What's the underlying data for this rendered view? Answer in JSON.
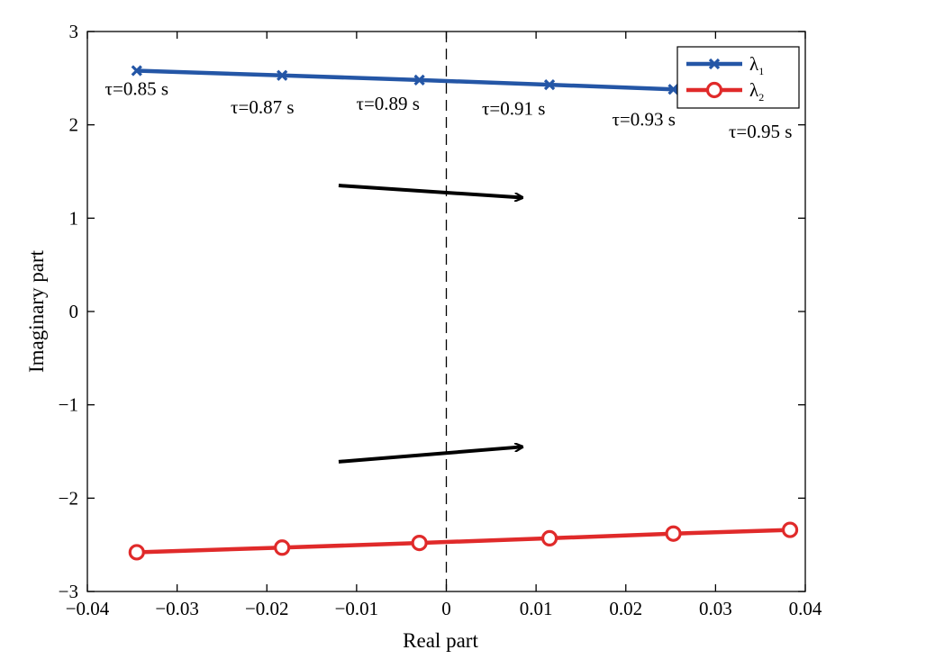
{
  "chart_data": {
    "type": "scatter",
    "xlabel": "Real part",
    "ylabel": "Imaginary part",
    "xlim": [
      -0.04,
      0.04
    ],
    "ylim": [
      -3,
      3
    ],
    "xticks": [
      -0.04,
      -0.03,
      -0.02,
      -0.01,
      0,
      0.01,
      0.02,
      0.03,
      0.04
    ],
    "yticks": [
      -3,
      -2,
      -1,
      0,
      1,
      2,
      3
    ],
    "xtick_labels": [
      "−0.04",
      "−0.03",
      "−0.02",
      "−0.01",
      "0",
      "0.01",
      "0.02",
      "0.03",
      "0.04"
    ],
    "ytick_labels": [
      "−3",
      "−2",
      "−1",
      "0",
      "1",
      "2",
      "3"
    ],
    "grid": false,
    "legend_position": "top-right",
    "series": [
      {
        "name": "λ",
        "subscript": "1",
        "color": "#2456a6",
        "marker": "x",
        "x": [
          -0.0345,
          -0.0183,
          -0.003,
          0.0115,
          0.0253,
          0.0383
        ],
        "y": [
          2.58,
          2.53,
          2.48,
          2.43,
          2.38,
          2.33
        ]
      },
      {
        "name": "λ",
        "subscript": "2",
        "color": "#e02a2a",
        "marker": "o",
        "x": [
          -0.0345,
          -0.0183,
          -0.003,
          0.0115,
          0.0253,
          0.0383
        ],
        "y": [
          -2.58,
          -2.53,
          -2.48,
          -2.43,
          -2.38,
          -2.34
        ]
      }
    ],
    "annotations": [
      {
        "text": "τ=0.85 s",
        "x": -0.0345,
        "y": 2.32
      },
      {
        "text": "τ=0.87 s",
        "x": -0.0205,
        "y": 2.12
      },
      {
        "text": "τ=0.89 s",
        "x": -0.0065,
        "y": 2.16
      },
      {
        "text": "τ=0.91 s",
        "x": 0.0075,
        "y": 2.11
      },
      {
        "text": "τ=0.93 s",
        "x": 0.022,
        "y": 1.99
      },
      {
        "text": "τ=0.95 s",
        "x": 0.035,
        "y": 1.86
      }
    ],
    "arrows": [
      {
        "from": [
          -0.012,
          1.35
        ],
        "to": [
          0.0085,
          1.22
        ]
      },
      {
        "from": [
          -0.012,
          -1.61
        ],
        "to": [
          0.0085,
          -1.45
        ]
      }
    ],
    "reference_line": {
      "x": 0,
      "style": "dashed"
    }
  }
}
